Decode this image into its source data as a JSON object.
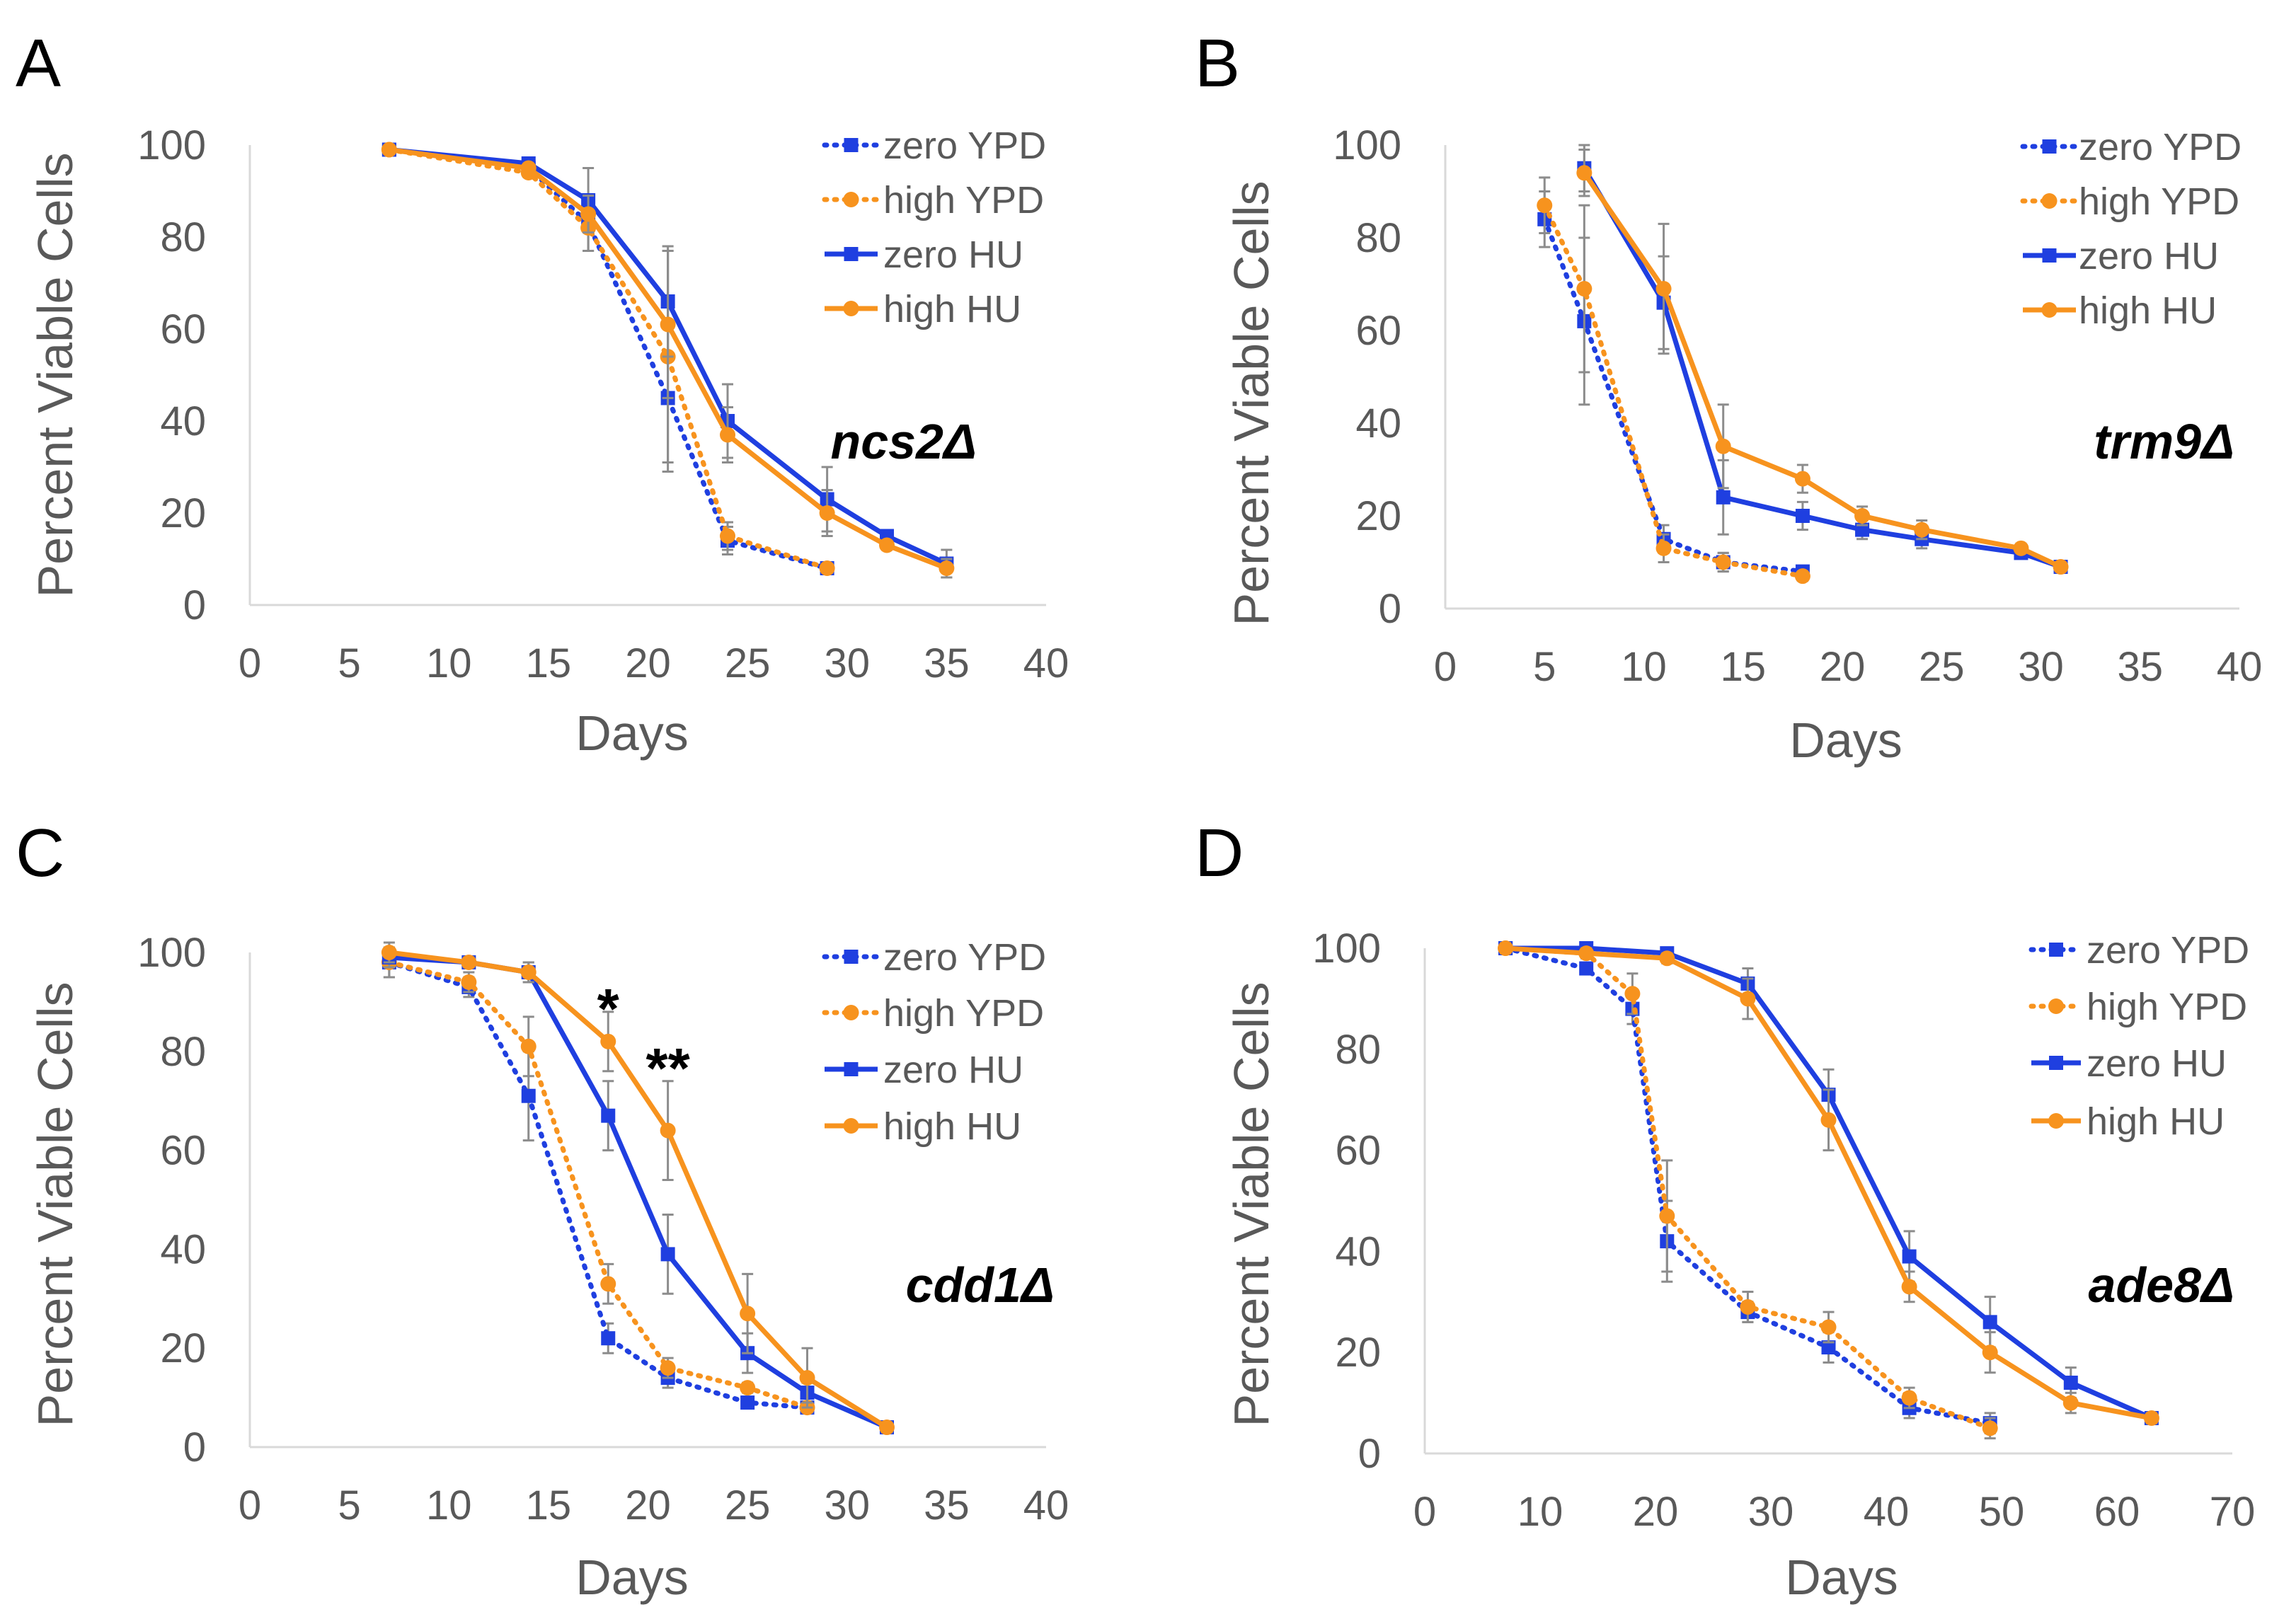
{
  "colors": {
    "blue": "#1f3fe0",
    "orange": "#f7931e",
    "axis": "#d9d9d9",
    "text": "#595959"
  },
  "axis_titles": {
    "y": "Percent Viable Cells",
    "x": "Days"
  },
  "chart_data": [
    {
      "panel": "A",
      "type": "line",
      "strain": "ncs2Δ",
      "xlabel": "Days",
      "ylabel": "Percent Viable Cells",
      "xlim": [
        0,
        40
      ],
      "ylim": [
        0,
        100
      ],
      "xticks": [
        0,
        5,
        10,
        15,
        20,
        25,
        30,
        35,
        40
      ],
      "yticks": [
        0,
        20,
        40,
        60,
        80,
        100
      ],
      "series": [
        {
          "name": "zero YPD",
          "color": "blue",
          "dash": true,
          "marker": "square",
          "points": [
            [
              7,
              99
            ],
            [
              14,
              95
            ],
            [
              17,
              83
            ],
            [
              21,
              45
            ],
            [
              24,
              14
            ],
            [
              29,
              8
            ]
          ],
          "err": [
            1,
            1,
            6,
            16,
            3,
            1
          ]
        },
        {
          "name": "high YPD",
          "color": "orange",
          "dash": true,
          "marker": "circle",
          "points": [
            [
              7,
              99
            ],
            [
              14,
              94
            ],
            [
              17,
              82
            ],
            [
              21,
              54
            ],
            [
              24,
              15
            ],
            [
              29,
              8
            ]
          ],
          "err": [
            1,
            1,
            5,
            23,
            3,
            1
          ]
        },
        {
          "name": "zero HU",
          "color": "blue",
          "dash": false,
          "marker": "square",
          "points": [
            [
              7,
              99
            ],
            [
              14,
              96
            ],
            [
              17,
              88
            ],
            [
              21,
              66
            ],
            [
              24,
              40
            ],
            [
              29,
              23
            ],
            [
              32,
              15
            ],
            [
              35,
              9
            ]
          ],
          "err": [
            1,
            1,
            7,
            12,
            8,
            7,
            1,
            3
          ]
        },
        {
          "name": "high HU",
          "color": "orange",
          "dash": false,
          "marker": "circle",
          "points": [
            [
              7,
              99
            ],
            [
              14,
              95
            ],
            [
              17,
              85
            ],
            [
              21,
              61
            ],
            [
              24,
              37
            ],
            [
              29,
              20
            ],
            [
              32,
              13
            ],
            [
              35,
              8
            ]
          ],
          "err": [
            1,
            1,
            4,
            16,
            6,
            5,
            1,
            2
          ]
        }
      ]
    },
    {
      "panel": "B",
      "type": "line",
      "strain": "trm9Δ",
      "xlabel": "Days",
      "ylabel": "Percent Viable Cells",
      "xlim": [
        0,
        40
      ],
      "ylim": [
        0,
        100
      ],
      "xticks": [
        0,
        5,
        10,
        15,
        20,
        25,
        30,
        35,
        40
      ],
      "yticks": [
        0,
        20,
        40,
        60,
        80,
        100
      ],
      "series": [
        {
          "name": "zero YPD",
          "color": "blue",
          "dash": true,
          "marker": "square",
          "points": [
            [
              5,
              84
            ],
            [
              7,
              62
            ],
            [
              11,
              15
            ],
            [
              14,
              10
            ],
            [
              18,
              8
            ]
          ],
          "err": [
            6,
            18,
            3,
            2,
            1
          ]
        },
        {
          "name": "high YPD",
          "color": "orange",
          "dash": true,
          "marker": "circle",
          "points": [
            [
              5,
              87
            ],
            [
              7,
              69
            ],
            [
              11,
              13
            ],
            [
              14,
              10
            ],
            [
              18,
              7
            ]
          ],
          "err": [
            6,
            18,
            3,
            2,
            1
          ]
        },
        {
          "name": "zero HU",
          "color": "blue",
          "dash": false,
          "marker": "square",
          "points": [
            [
              7,
              95
            ],
            [
              11,
              66
            ],
            [
              14,
              24
            ],
            [
              18,
              20
            ],
            [
              21,
              17
            ],
            [
              24,
              15
            ],
            [
              29,
              12
            ],
            [
              31,
              9
            ]
          ],
          "err": [
            5,
            10,
            8,
            3,
            2,
            2,
            1,
            1
          ]
        },
        {
          "name": "high HU",
          "color": "orange",
          "dash": false,
          "marker": "circle",
          "points": [
            [
              7,
              94
            ],
            [
              11,
              69
            ],
            [
              14,
              35
            ],
            [
              18,
              28
            ],
            [
              21,
              20
            ],
            [
              24,
              17
            ],
            [
              29,
              13
            ],
            [
              31,
              9
            ]
          ],
          "err": [
            5,
            14,
            9,
            3,
            2,
            2,
            1,
            1
          ]
        }
      ]
    },
    {
      "panel": "C",
      "type": "line",
      "strain": "cdd1Δ",
      "xlabel": "Days",
      "ylabel": "Percent Viable Cells",
      "xlim": [
        0,
        40
      ],
      "ylim": [
        0,
        100
      ],
      "xticks": [
        0,
        5,
        10,
        15,
        20,
        25,
        30,
        35,
        40
      ],
      "yticks": [
        0,
        20,
        40,
        60,
        80,
        100
      ],
      "annotations": [
        {
          "text": "*",
          "x": 18,
          "y": 89
        },
        {
          "text": "**",
          "x": 21,
          "y": 77
        }
      ],
      "series": [
        {
          "name": "zero YPD",
          "color": "blue",
          "dash": true,
          "marker": "square",
          "points": [
            [
              7,
              98
            ],
            [
              11,
              93
            ],
            [
              14,
              71
            ],
            [
              18,
              22
            ],
            [
              21,
              14
            ],
            [
              25,
              9
            ],
            [
              28,
              8
            ]
          ],
          "err": [
            3,
            2,
            9,
            3,
            2,
            1,
            1
          ]
        },
        {
          "name": "high YPD",
          "color": "orange",
          "dash": true,
          "marker": "circle",
          "points": [
            [
              7,
              98
            ],
            [
              11,
              94
            ],
            [
              14,
              81
            ],
            [
              18,
              33
            ],
            [
              21,
              16
            ],
            [
              25,
              12
            ],
            [
              28,
              8
            ]
          ],
          "err": [
            3,
            2,
            6,
            4,
            2,
            1,
            1
          ]
        },
        {
          "name": "zero HU",
          "color": "blue",
          "dash": false,
          "marker": "square",
          "points": [
            [
              7,
              99
            ],
            [
              11,
              98
            ],
            [
              14,
              96
            ],
            [
              18,
              67
            ],
            [
              21,
              39
            ],
            [
              25,
              19
            ],
            [
              28,
              11
            ],
            [
              32,
              4
            ]
          ],
          "err": [
            2,
            1,
            2,
            7,
            8,
            4,
            2,
            1
          ]
        },
        {
          "name": "high HU",
          "color": "orange",
          "dash": false,
          "marker": "circle",
          "points": [
            [
              7,
              100
            ],
            [
              11,
              98
            ],
            [
              14,
              96
            ],
            [
              18,
              82
            ],
            [
              21,
              64
            ],
            [
              25,
              27
            ],
            [
              28,
              14
            ],
            [
              32,
              4
            ]
          ],
          "err": [
            2,
            1,
            2,
            6,
            10,
            8,
            6,
            1
          ]
        }
      ]
    },
    {
      "panel": "D",
      "type": "line",
      "strain": "ade8Δ",
      "xlabel": "Days",
      "ylabel": "Percent Viable Cells",
      "xlim": [
        0,
        70
      ],
      "ylim": [
        0,
        100
      ],
      "xticks": [
        0,
        10,
        20,
        30,
        40,
        50,
        60,
        70
      ],
      "yticks": [
        0,
        20,
        40,
        60,
        80,
        100
      ],
      "series": [
        {
          "name": "zero YPD",
          "color": "blue",
          "dash": true,
          "marker": "square",
          "points": [
            [
              7,
              100
            ],
            [
              14,
              96
            ],
            [
              18,
              88
            ],
            [
              21,
              42
            ],
            [
              28,
              28
            ],
            [
              35,
              21
            ],
            [
              42,
              9
            ],
            [
              49,
              6
            ]
          ],
          "err": [
            1,
            1,
            3,
            8,
            2,
            3,
            2,
            2
          ]
        },
        {
          "name": "high YPD",
          "color": "orange",
          "dash": true,
          "marker": "circle",
          "points": [
            [
              7,
              100
            ],
            [
              14,
              99
            ],
            [
              18,
              91
            ],
            [
              21,
              47
            ],
            [
              28,
              29
            ],
            [
              35,
              25
            ],
            [
              42,
              11
            ],
            [
              49,
              5
            ]
          ],
          "err": [
            1,
            1,
            4,
            11,
            3,
            3,
            2,
            2
          ]
        },
        {
          "name": "zero HU",
          "color": "blue",
          "dash": false,
          "marker": "square",
          "points": [
            [
              7,
              100
            ],
            [
              14,
              100
            ],
            [
              21,
              99
            ],
            [
              28,
              93
            ],
            [
              35,
              71
            ],
            [
              42,
              39
            ],
            [
              49,
              26
            ],
            [
              56,
              14
            ],
            [
              63,
              7
            ]
          ],
          "err": [
            1,
            1,
            1,
            3,
            5,
            5,
            5,
            3,
            1
          ]
        },
        {
          "name": "high HU",
          "color": "orange",
          "dash": false,
          "marker": "circle",
          "points": [
            [
              7,
              100
            ],
            [
              14,
              99
            ],
            [
              21,
              98
            ],
            [
              28,
              90
            ],
            [
              35,
              66
            ],
            [
              42,
              33
            ],
            [
              49,
              20
            ],
            [
              56,
              10
            ],
            [
              63,
              7
            ]
          ],
          "err": [
            1,
            1,
            1,
            4,
            6,
            3,
            4,
            2,
            1
          ]
        }
      ]
    }
  ]
}
